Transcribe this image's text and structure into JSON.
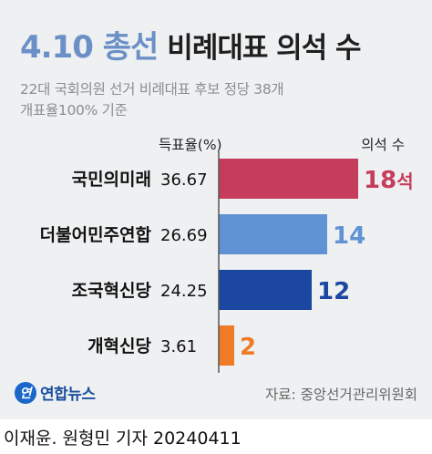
{
  "header": {
    "title_main": "4.10 총선",
    "title_sub": "비례대표 의석 수",
    "subtitle_line1": "22대 국회의원 선거 비례대표 후보 정당 38개",
    "subtitle_line2": "개표율100% 기준",
    "col_rate": "득표율(%)",
    "col_seats": "의석 수"
  },
  "chart_data": {
    "type": "bar",
    "orientation": "horizontal",
    "categories": [
      "국민의미래",
      "더불어민주연합",
      "조국혁신당",
      "개혁신당"
    ],
    "rates": [
      "36.67",
      "26.69",
      "24.25",
      "3.61"
    ],
    "values": [
      18,
      14,
      12,
      2
    ],
    "value_labels": [
      "18",
      "14",
      "12",
      "2"
    ],
    "first_value_unit": "석",
    "xlim": [
      0,
      18
    ],
    "colors": [
      "#c63d5b",
      "#5f93d4",
      "#1b47a0",
      "#f07b26"
    ],
    "grid": false,
    "legend": "none"
  },
  "footer": {
    "logo_letter": "연",
    "logo_text": "연합뉴스",
    "source": "자료: 중앙선거관리위원회",
    "byline": "이재윤. 원형민 기자  20240411"
  }
}
